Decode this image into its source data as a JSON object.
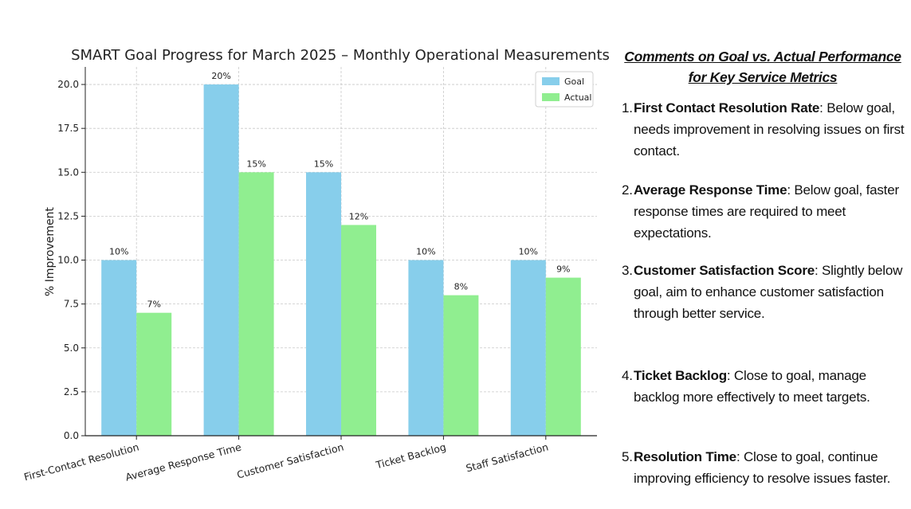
{
  "chart_data": {
    "type": "bar",
    "title": "SMART Goal Progress for March 2025 – Monthly Operational Measurements",
    "xlabel": "",
    "ylabel": "% Improvement",
    "ylim": [
      0,
      21
    ],
    "yticks": [
      "0.0",
      "2.5",
      "5.0",
      "7.5",
      "10.0",
      "12.5",
      "15.0",
      "17.5",
      "20.0"
    ],
    "grid": true,
    "legend_position": "top-right",
    "categories": [
      "First-Contact Resolution",
      "Average Response Time",
      "Customer Satisfaction",
      "Ticket Backlog",
      "Staff Satisfaction"
    ],
    "series": [
      {
        "name": "Goal",
        "color": "#87CEEB",
        "values": [
          10,
          20,
          15,
          10,
          10
        ],
        "labels": [
          "10%",
          "20%",
          "15%",
          "10%",
          "10%"
        ]
      },
      {
        "name": "Actual",
        "color": "#90EE90",
        "values": [
          7,
          15,
          12,
          8,
          9
        ],
        "labels": [
          "7%",
          "15%",
          "12%",
          "8%",
          "9%"
        ]
      }
    ]
  },
  "comments": {
    "title": "Comments on Goal vs. Actual Performance for Key Service Metrics",
    "items": [
      {
        "num": "1.",
        "term": "First Contact Resolution Rate",
        "text": ": Below goal, needs improvement in resolving issues on first contact."
      },
      {
        "num": "2.",
        "term": "Average Response Time",
        "text": ": Below goal, faster response times are required to meet expectations."
      },
      {
        "num": "3.",
        "term": "Customer Satisfaction Score",
        "text": ": Slightly below goal, aim to enhance customer satisfaction through better service."
      },
      {
        "num": "4.",
        "term": "Ticket Backlog",
        "text": ": Close to goal, manage backlog more effectively to meet targets."
      },
      {
        "num": "5.",
        "term": "Resolution Time",
        "text": ": Close to goal, continue improving efficiency to resolve issues faster."
      }
    ]
  }
}
